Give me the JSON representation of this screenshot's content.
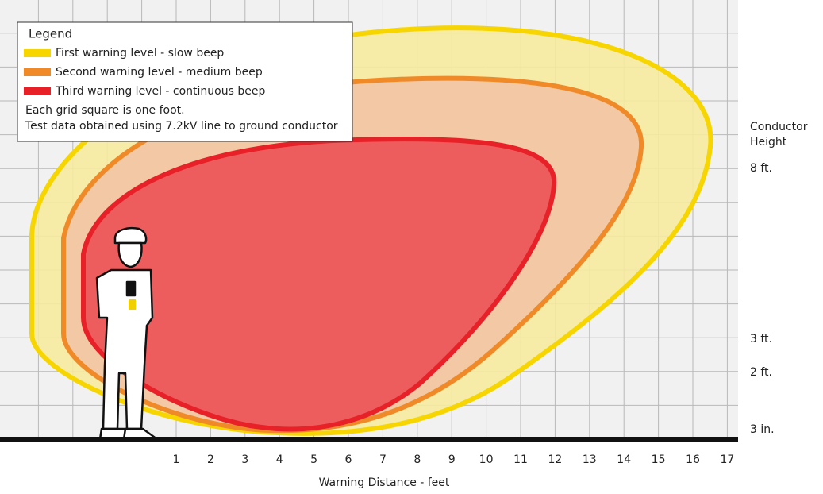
{
  "legend": {
    "title": "Legend",
    "items": [
      "First warning level - slow beep",
      "Second warning level - medium beep",
      "Third warning level - continuous beep"
    ],
    "notes": [
      "Each grid square is one foot.",
      "Test data obtained using 7.2kV line to ground conductor"
    ]
  },
  "x_axis": {
    "title": "Warning Distance - feet",
    "ticks": [
      "1",
      "2",
      "3",
      "4",
      "5",
      "6",
      "7",
      "8",
      "9",
      "10",
      "11",
      "12",
      "13",
      "14",
      "15",
      "16",
      "17"
    ]
  },
  "y_axis": {
    "title": [
      "Conductor",
      "Height"
    ],
    "labels": [
      "8 ft.",
      "3 ft.",
      "2 ft.",
      "3 in."
    ]
  }
}
